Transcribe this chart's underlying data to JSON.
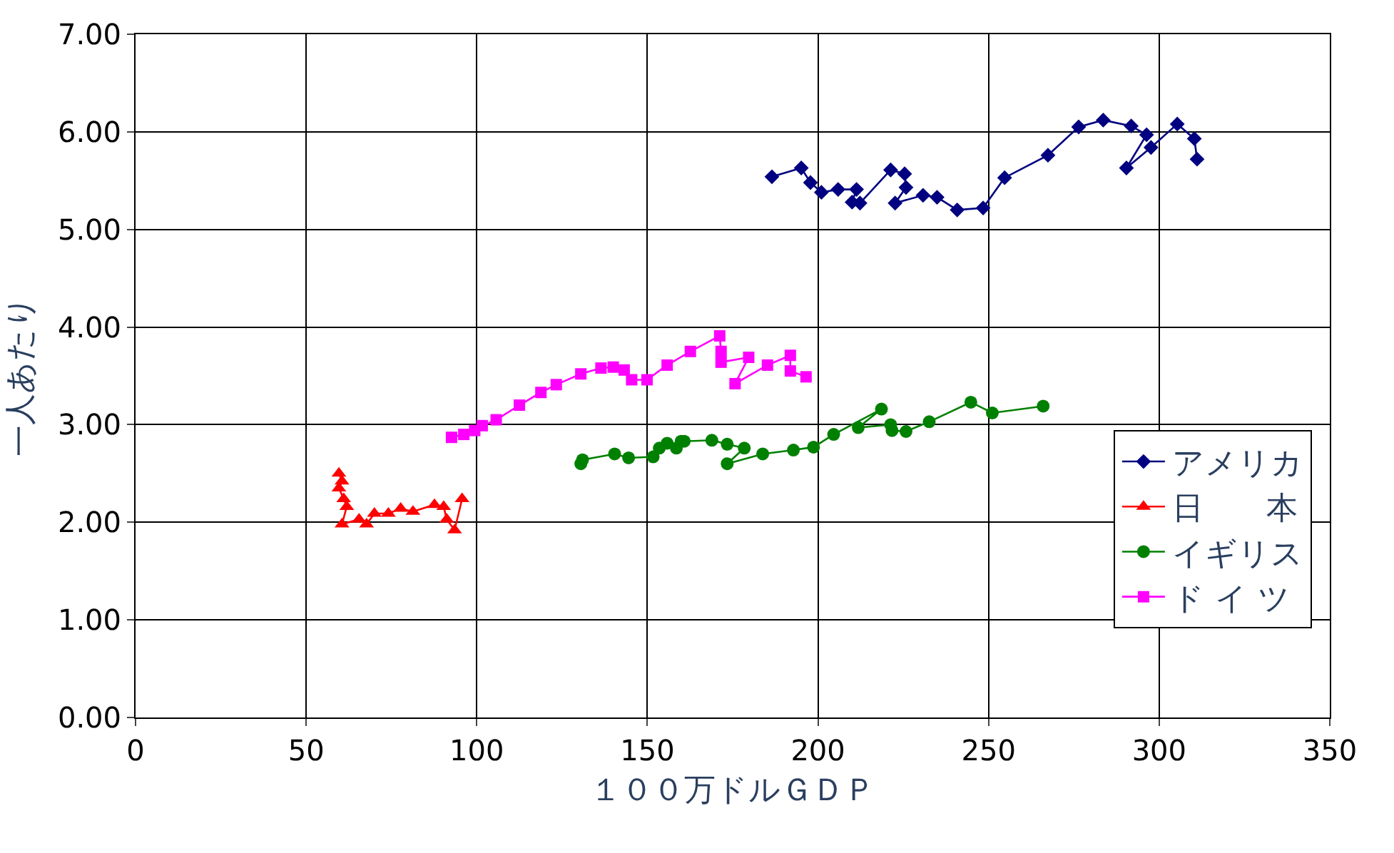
{
  "chart_data": {
    "type": "line",
    "xlabel": "１００万ドルＧＤＰ",
    "ylabel": "一人あたり",
    "xlim": [
      0,
      350
    ],
    "xticks": [
      0,
      50,
      100,
      150,
      200,
      250,
      300,
      350
    ],
    "ylim": [
      0,
      7
    ],
    "yticks": [
      {
        "value": 0,
        "label": "0.00"
      },
      {
        "value": 1,
        "label": "1.00"
      },
      {
        "value": 2,
        "label": "2.00"
      },
      {
        "value": 3,
        "label": "3.00"
      },
      {
        "value": 4,
        "label": "4.00"
      },
      {
        "value": 5,
        "label": "5.00"
      },
      {
        "value": 6,
        "label": "6.00"
      },
      {
        "value": 7,
        "label": "7.00"
      }
    ],
    "grid": true,
    "legend": "bottom right",
    "line_style": "solid",
    "series": [
      {
        "name": "アメリカ",
        "color": "#000080",
        "marker": "diamond",
        "x": [
          186.5,
          195.1,
          197.8,
          201.0,
          205.9,
          211.3,
          210.0,
          212.3,
          221.3,
          225.4,
          225.8,
          222.6,
          230.8,
          234.9,
          240.8,
          248.4,
          254.7,
          267.4,
          276.4,
          283.6,
          291.8,
          296.3,
          290.4,
          297.6,
          305.3,
          310.3,
          311.1
        ],
        "values": [
          5.54,
          5.63,
          5.48,
          5.38,
          5.41,
          5.41,
          5.28,
          5.27,
          5.61,
          5.57,
          5.43,
          5.27,
          5.35,
          5.33,
          5.2,
          5.22,
          5.53,
          5.76,
          6.05,
          6.12,
          6.06,
          5.97,
          5.63,
          5.84,
          6.08,
          5.93,
          5.72
        ]
      },
      {
        "name": "日　　本",
        "color": "#ff0000",
        "marker": "triangle",
        "x": [
          59.6,
          60.5,
          59.6,
          61.0,
          61.9,
          60.5,
          65.5,
          67.7,
          70.0,
          74.1,
          77.7,
          81.3,
          87.6,
          90.3,
          91.2,
          93.5,
          95.7
        ],
        "values": [
          2.5,
          2.42,
          2.35,
          2.24,
          2.16,
          1.98,
          2.03,
          1.98,
          2.09,
          2.09,
          2.14,
          2.11,
          2.18,
          2.16,
          2.03,
          1.92,
          2.24
        ]
      },
      {
        "name": "イギリス",
        "color": "#008000",
        "marker": "circle",
        "x": [
          130.5,
          131.0,
          140.4,
          144.5,
          151.7,
          153.5,
          155.8,
          158.5,
          159.9,
          160.8,
          168.9,
          173.4,
          178.4,
          173.4,
          183.8,
          192.8,
          198.7,
          204.6,
          218.6,
          211.8,
          221.3,
          221.7,
          225.8,
          232.6,
          244.8,
          251.1,
          266.0
        ],
        "values": [
          2.6,
          2.64,
          2.7,
          2.66,
          2.67,
          2.76,
          2.81,
          2.76,
          2.83,
          2.83,
          2.84,
          2.8,
          2.76,
          2.6,
          2.7,
          2.74,
          2.77,
          2.9,
          3.16,
          2.97,
          3.0,
          2.94,
          2.93,
          3.03,
          3.23,
          3.12,
          3.19
        ]
      },
      {
        "name": "ド イ ツ",
        "color": "#ff00ff",
        "marker": "square",
        "x": [
          92.6,
          96.2,
          99.4,
          101.6,
          105.7,
          112.5,
          118.8,
          123.3,
          130.5,
          136.4,
          140.0,
          143.2,
          145.4,
          149.9,
          155.8,
          162.6,
          171.2,
          171.6,
          171.6,
          179.7,
          175.7,
          185.2,
          191.9,
          191.9,
          196.5
        ],
        "values": [
          2.87,
          2.9,
          2.94,
          2.99,
          3.05,
          3.2,
          3.33,
          3.41,
          3.52,
          3.58,
          3.59,
          3.56,
          3.46,
          3.46,
          3.61,
          3.75,
          3.91,
          3.75,
          3.64,
          3.69,
          3.42,
          3.61,
          3.71,
          3.55,
          3.49
        ]
      }
    ]
  }
}
